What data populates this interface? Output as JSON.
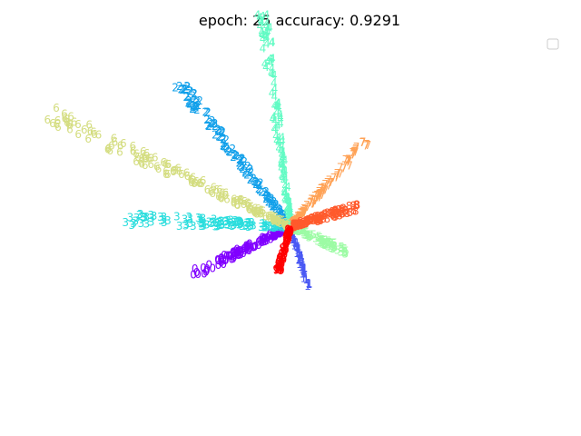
{
  "chart_data": {
    "type": "scatter",
    "title": "epoch: 25   accuracy: 0.9291",
    "xlabel": "",
    "ylabel": "",
    "grid": false,
    "axes_visible": false,
    "legend": {
      "placement": "top-right",
      "entries": []
    },
    "xlim": [
      -5.0,
      5.0
    ],
    "ylim": [
      -3.0,
      3.0
    ],
    "marker": "digit class label drawn as text",
    "series": [
      {
        "name": "0",
        "color": "#8000ff",
        "direction": [
          -0.92,
          -0.39
        ],
        "radius_range": [
          0.05,
          1.95
        ],
        "count": 130
      },
      {
        "name": "1",
        "color": "#4a59f4",
        "direction": [
          0.33,
          -0.94
        ],
        "radius_range": [
          0.05,
          1.0
        ],
        "count": 70
      },
      {
        "name": "2",
        "color": "#12a0ea",
        "direction": [
          -0.67,
          0.74
        ],
        "radius_range": [
          0.05,
          3.1
        ],
        "count": 150
      },
      {
        "name": "3",
        "color": "#2adddd",
        "direction": [
          -0.999,
          0.04
        ],
        "radius_range": [
          0.05,
          3.05
        ],
        "count": 150
      },
      {
        "name": "4",
        "color": "#62fbc4",
        "direction": [
          -0.15,
          0.99
        ],
        "radius_range": [
          0.05,
          3.55
        ],
        "count": 140
      },
      {
        "name": "5",
        "color": "#9cfba4",
        "direction": [
          0.93,
          -0.36
        ],
        "radius_range": [
          0.05,
          1.1
        ],
        "count": 80
      },
      {
        "name": "6",
        "color": "#d4dd80",
        "direction": [
          -0.93,
          0.37
        ],
        "radius_range": [
          0.05,
          4.8
        ],
        "count": 160
      },
      {
        "name": "7",
        "color": "#ffa256",
        "direction": [
          0.72,
          0.69
        ],
        "radius_range": [
          0.05,
          1.95
        ],
        "count": 110
      },
      {
        "name": "8",
        "color": "#ff5a2c",
        "direction": [
          0.97,
          0.24
        ],
        "radius_range": [
          0.05,
          1.3
        ],
        "count": 110
      },
      {
        "name": "9",
        "color": "#ff0000",
        "direction": [
          -0.3,
          -0.95
        ],
        "radius_range": [
          0.05,
          0.75
        ],
        "count": 70
      }
    ]
  }
}
